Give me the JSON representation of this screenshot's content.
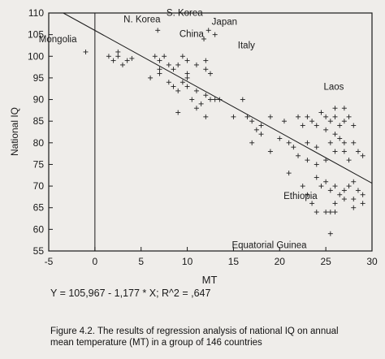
{
  "chart_data": {
    "type": "scatter",
    "xlabel": "MT",
    "ylabel": "National IQ",
    "xlim": [
      -5,
      30
    ],
    "ylim": [
      55,
      110
    ],
    "x_ticks": [
      -5,
      0,
      5,
      10,
      15,
      20,
      25,
      30
    ],
    "y_ticks": [
      55,
      60,
      65,
      70,
      75,
      80,
      85,
      90,
      95,
      100,
      105,
      110
    ],
    "grid": false,
    "marker": "+",
    "regression": {
      "equation": "Y = 105,967 - 1,177 * X; R^2 = ,647",
      "intercept": 105.967,
      "slope": -1.177,
      "r_squared": 0.647
    },
    "annotations": [
      {
        "text": "Mongolia",
        "x": -1.5,
        "y": 101
      },
      {
        "text": "N. Korea",
        "x": 6.8,
        "y": 106
      },
      {
        "text": "S. Korea",
        "x": 8.8,
        "y": 106
      },
      {
        "text": "China",
        "x": 9.5,
        "y": 103
      },
      {
        "text": "Japan",
        "x": 13,
        "y": 105
      },
      {
        "text": "Italy",
        "x": 16,
        "y": 100
      },
      {
        "text": "Laos",
        "x": 26,
        "y": 90
      },
      {
        "text": "Ethiopia",
        "x": 25,
        "y": 67
      },
      {
        "text": "Equatorial Guinea",
        "x": 24.5,
        "y": 59
      }
    ],
    "points": [
      [
        -1,
        101
      ],
      [
        6.8,
        106
      ],
      [
        13,
        105
      ],
      [
        12.3,
        106
      ],
      [
        11.8,
        104
      ],
      [
        1.5,
        100
      ],
      [
        2,
        99
      ],
      [
        2.5,
        100
      ],
      [
        3,
        98
      ],
      [
        3.5,
        99
      ],
      [
        4,
        99.5
      ],
      [
        2.5,
        101
      ],
      [
        6.5,
        100
      ],
      [
        7,
        99
      ],
      [
        7.5,
        100
      ],
      [
        7,
        97
      ],
      [
        8,
        98
      ],
      [
        8.5,
        97
      ],
      [
        9,
        98
      ],
      [
        9.5,
        100
      ],
      [
        10,
        99
      ],
      [
        10,
        96
      ],
      [
        11,
        98
      ],
      [
        12,
        97
      ],
      [
        12.5,
        96
      ],
      [
        12,
        99
      ],
      [
        6,
        95
      ],
      [
        7,
        96
      ],
      [
        8,
        94
      ],
      [
        8.5,
        93
      ],
      [
        9,
        92
      ],
      [
        9.5,
        94
      ],
      [
        10,
        93
      ],
      [
        11,
        92
      ],
      [
        12,
        91
      ],
      [
        11.5,
        89
      ],
      [
        12.5,
        90
      ],
      [
        13,
        90
      ],
      [
        13.5,
        90
      ],
      [
        10.5,
        90
      ],
      [
        9,
        87
      ],
      [
        11,
        88
      ],
      [
        12,
        86
      ],
      [
        16,
        90
      ],
      [
        16.5,
        86
      ],
      [
        17,
        85
      ],
      [
        17.5,
        83
      ],
      [
        18,
        84
      ],
      [
        17,
        80
      ],
      [
        19,
        86
      ],
      [
        20.5,
        85
      ],
      [
        20,
        81
      ],
      [
        19,
        78
      ],
      [
        21,
        80
      ],
      [
        21.5,
        79
      ],
      [
        22,
        86
      ],
      [
        22.5,
        84
      ],
      [
        23,
        86
      ],
      [
        23.5,
        85
      ],
      [
        24,
        84
      ],
      [
        24.5,
        87
      ],
      [
        25,
        86
      ],
      [
        25.5,
        85
      ],
      [
        26,
        86
      ],
      [
        26.5,
        84
      ],
      [
        27,
        85
      ],
      [
        25,
        83
      ],
      [
        26,
        82
      ],
      [
        26.5,
        81
      ],
      [
        25.5,
        80
      ],
      [
        27,
        80
      ],
      [
        23,
        80
      ],
      [
        24,
        79
      ],
      [
        22,
        77
      ],
      [
        23,
        76
      ],
      [
        24,
        75
      ],
      [
        25,
        76
      ],
      [
        26,
        78
      ],
      [
        27,
        78
      ],
      [
        28,
        80
      ],
      [
        28.5,
        78
      ],
      [
        27.5,
        76
      ],
      [
        29,
        77
      ],
      [
        26,
        88
      ],
      [
        27,
        88
      ],
      [
        27.5,
        86
      ],
      [
        28,
        84
      ],
      [
        24,
        72
      ],
      [
        24.5,
        70
      ],
      [
        25,
        71
      ],
      [
        25.5,
        69
      ],
      [
        26,
        70
      ],
      [
        26.5,
        68
      ],
      [
        27,
        69
      ],
      [
        27.5,
        70
      ],
      [
        28,
        71
      ],
      [
        28.5,
        69
      ],
      [
        29,
        68
      ],
      [
        27,
        67
      ],
      [
        28,
        67
      ],
      [
        29,
        66
      ],
      [
        26,
        66
      ],
      [
        28,
        65
      ],
      [
        22.5,
        70
      ],
      [
        23,
        68
      ],
      [
        23.5,
        66
      ],
      [
        24,
        64
      ],
      [
        25,
        64
      ],
      [
        25.5,
        64
      ],
      [
        26,
        64
      ],
      [
        21,
        73
      ],
      [
        25.5,
        59
      ],
      [
        15,
        86
      ],
      [
        18,
        82
      ],
      [
        10,
        95
      ]
    ]
  },
  "caption": {
    "line1": "Figure 4.2.  The results of regression analysis of national IQ on annual",
    "line2": "mean temperature (MT) in a group of 146 countries"
  }
}
